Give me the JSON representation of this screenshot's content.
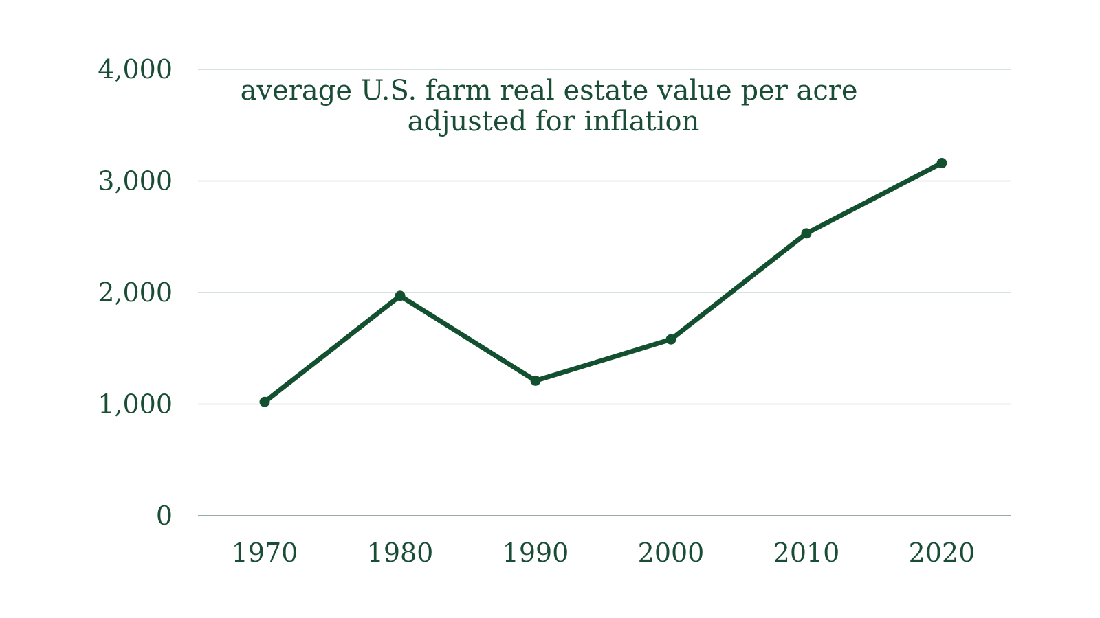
{
  "chart_data": {
    "type": "line",
    "title": "average U.S. farm real estate value per acre adjusted for inflation",
    "title_lines": [
      "average U.S. farm real estate value per acre",
      "adjusted for inflation"
    ],
    "x": [
      "1970",
      "1980",
      "1990",
      "2000",
      "2010",
      "2020"
    ],
    "series": [
      {
        "values": [
          1020,
          1970,
          1210,
          1580,
          2530,
          3160
        ]
      }
    ],
    "ylim": [
      0,
      4000
    ],
    "y_ticks": [
      0,
      1000,
      2000,
      3000,
      4000
    ],
    "y_tick_labels": [
      "0",
      "1,000",
      "2,000",
      "3,000",
      "4,000"
    ],
    "grid": true,
    "color": "#12502f"
  }
}
